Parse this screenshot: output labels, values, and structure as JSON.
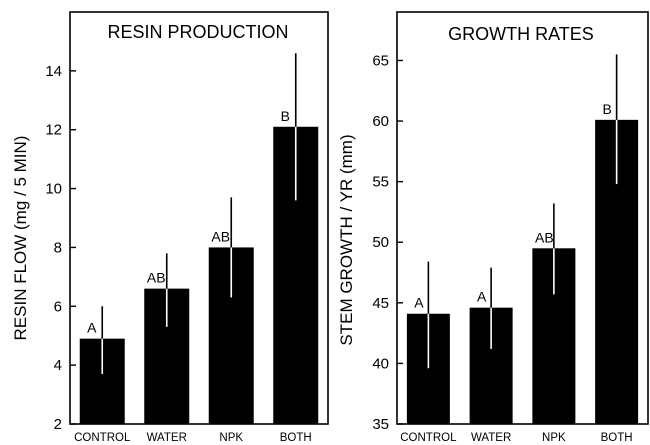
{
  "chart_data": [
    {
      "type": "bar",
      "title": "RESIN PRODUCTION",
      "xlabel": "",
      "ylabel": "RESIN FLOW (mg / 5 MIN)",
      "ylim": [
        2,
        16
      ],
      "yticks": [
        2,
        4,
        6,
        8,
        10,
        12,
        14
      ],
      "categories": [
        "CONTROL",
        "WATER",
        "NPK",
        "BOTH"
      ],
      "values": [
        4.9,
        6.6,
        8.0,
        12.1
      ],
      "error_low": [
        3.7,
        5.3,
        6.3,
        9.6
      ],
      "error_high": [
        6.0,
        7.8,
        9.7,
        14.6
      ],
      "significance_labels": [
        "A",
        "AB",
        "AB",
        "B"
      ],
      "grid": false
    },
    {
      "type": "bar",
      "title": "GROWTH RATES",
      "xlabel": "",
      "ylabel": "STEM GROWTH / YR (mm)",
      "ylim": [
        35,
        69
      ],
      "yticks": [
        35,
        40,
        45,
        50,
        55,
        60,
        65
      ],
      "categories": [
        "CONTROL",
        "WATER",
        "NPK",
        "BOTH"
      ],
      "values": [
        44.1,
        44.6,
        49.5,
        60.1
      ],
      "error_low": [
        39.6,
        41.2,
        45.7,
        54.8
      ],
      "error_high": [
        48.4,
        47.9,
        53.2,
        65.5
      ],
      "significance_labels": [
        "A",
        "A",
        "AB",
        "B"
      ],
      "grid": false
    }
  ]
}
